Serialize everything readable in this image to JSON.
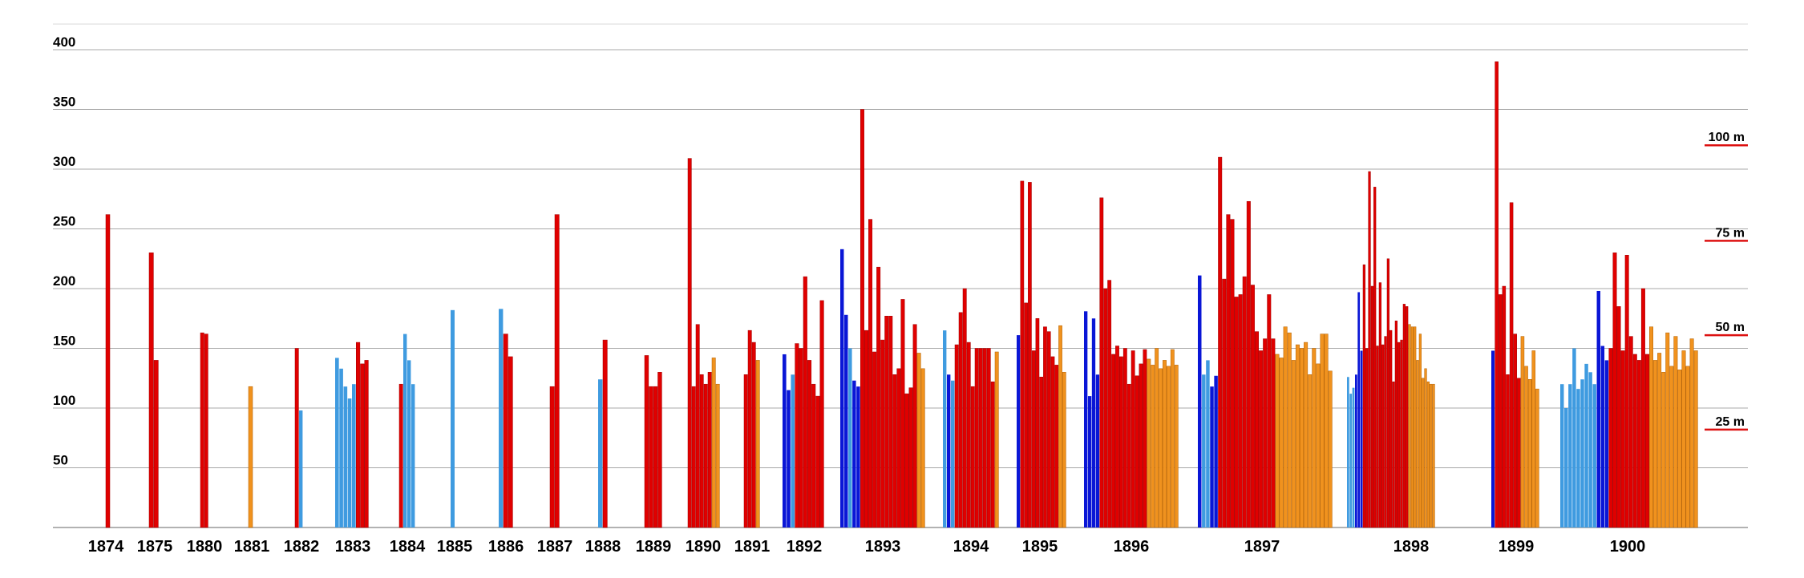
{
  "chart_data": {
    "type": "bar",
    "title": "",
    "xlabel": "",
    "ylabel": "",
    "ylim": [
      0,
      420
    ],
    "grid": true,
    "y_ticks": [
      50,
      100,
      150,
      200,
      250,
      300,
      350,
      400
    ],
    "colors": {
      "dark_blue": "#0a16d6",
      "light_blue": "#3f9be0",
      "red": "#e00000",
      "orange": "#f0921e",
      "grid": "#a8a8a8",
      "scale_bar": "#dd1111"
    },
    "right_scale": [
      {
        "label": "100 m",
        "value": 320
      },
      {
        "label": "75 m",
        "value": 240
      },
      {
        "label": "50 m",
        "value": 161
      },
      {
        "label": "25 m",
        "value": 82
      }
    ],
    "groups": [
      {
        "year": "1874",
        "bars": [
          [
            "r",
            262
          ]
        ]
      },
      {
        "year": "1875",
        "bars": [
          [
            "r",
            230
          ],
          [
            "r",
            140
          ]
        ]
      },
      {
        "year": "1880",
        "bars": [
          [
            "r",
            163
          ],
          [
            "r",
            162
          ]
        ]
      },
      {
        "year": "1881",
        "bars": [
          [
            "o",
            118
          ]
        ]
      },
      {
        "year": "1882",
        "bars": [
          [
            "r",
            150
          ],
          [
            "lb",
            98
          ]
        ]
      },
      {
        "year": "1883",
        "bars": [
          [
            "lb",
            142
          ],
          [
            "lb",
            133
          ],
          [
            "lb",
            118
          ],
          [
            "lb",
            108
          ],
          [
            "lb",
            120
          ],
          [
            "r",
            155
          ],
          [
            "r",
            137
          ],
          [
            "r",
            140
          ]
        ]
      },
      {
        "year": "1884",
        "bars": [
          [
            "r",
            120
          ],
          [
            "lb",
            162
          ],
          [
            "lb",
            140
          ],
          [
            "lb",
            120
          ]
        ]
      },
      {
        "year": "1885",
        "bars": [
          [
            "lb",
            182
          ]
        ]
      },
      {
        "year": "1886",
        "bars": [
          [
            "lb",
            183
          ],
          [
            "r",
            162
          ],
          [
            "r",
            143
          ]
        ]
      },
      {
        "year": "1887",
        "bars": [
          [
            "r",
            118
          ],
          [
            "r",
            262
          ]
        ]
      },
      {
        "year": "1888",
        "bars": [
          [
            "lb",
            124
          ],
          [
            "r",
            157
          ]
        ]
      },
      {
        "year": "1889",
        "bars": [
          [
            "r",
            144
          ],
          [
            "r",
            118
          ],
          [
            "r",
            118
          ],
          [
            "r",
            130
          ]
        ]
      },
      {
        "year": "1890",
        "bars": [
          [
            "r",
            309
          ],
          [
            "r",
            118
          ],
          [
            "r",
            170
          ],
          [
            "r",
            128
          ],
          [
            "r",
            120
          ],
          [
            "r",
            130
          ],
          [
            "o",
            142
          ],
          [
            "o",
            120
          ]
        ]
      },
      {
        "year": "1891",
        "bars": [
          [
            "r",
            128
          ],
          [
            "r",
            165
          ],
          [
            "r",
            155
          ],
          [
            "o",
            140
          ]
        ]
      },
      {
        "year": "1892",
        "bars": [
          [
            "db",
            145
          ],
          [
            "db",
            115
          ],
          [
            "lb",
            128
          ],
          [
            "r",
            154
          ],
          [
            "r",
            150
          ],
          [
            "r",
            210
          ],
          [
            "r",
            140
          ],
          [
            "r",
            120
          ],
          [
            "r",
            110
          ],
          [
            "r",
            190
          ]
        ]
      },
      {
        "year": "1893",
        "bars": [
          [
            "db",
            233
          ],
          [
            "db",
            178
          ],
          [
            "lb",
            150
          ],
          [
            "db",
            123
          ],
          [
            "db",
            118
          ],
          [
            "r",
            350
          ],
          [
            "r",
            165
          ],
          [
            "r",
            258
          ],
          [
            "r",
            147
          ],
          [
            "r",
            218
          ],
          [
            "r",
            157
          ],
          [
            "r",
            177
          ],
          [
            "r",
            177
          ],
          [
            "r",
            128
          ],
          [
            "r",
            133
          ],
          [
            "r",
            191
          ],
          [
            "r",
            112
          ],
          [
            "r",
            117
          ],
          [
            "r",
            170
          ],
          [
            "o",
            146
          ],
          [
            "o",
            133
          ]
        ]
      },
      {
        "year": "1894",
        "bars": [
          [
            "lb",
            165
          ],
          [
            "db",
            128
          ],
          [
            "lb",
            123
          ],
          [
            "r",
            153
          ],
          [
            "r",
            180
          ],
          [
            "r",
            200
          ],
          [
            "r",
            155
          ],
          [
            "r",
            118
          ],
          [
            "r",
            150
          ],
          [
            "r",
            150
          ],
          [
            "r",
            150
          ],
          [
            "r",
            150
          ],
          [
            "r",
            122
          ],
          [
            "o",
            147
          ]
        ]
      },
      {
        "year": "1895",
        "bars": [
          [
            "db",
            161
          ],
          [
            "r",
            290
          ],
          [
            "r",
            188
          ],
          [
            "r",
            289
          ],
          [
            "r",
            148
          ],
          [
            "r",
            175
          ],
          [
            "r",
            126
          ],
          [
            "r",
            168
          ],
          [
            "r",
            164
          ],
          [
            "r",
            143
          ],
          [
            "r",
            136
          ],
          [
            "o",
            169
          ],
          [
            "o",
            130
          ]
        ]
      },
      {
        "year": "1896",
        "bars": [
          [
            "db",
            181
          ],
          [
            "db",
            110
          ],
          [
            "db",
            175
          ],
          [
            "db",
            128
          ],
          [
            "r",
            276
          ],
          [
            "r",
            200
          ],
          [
            "r",
            207
          ],
          [
            "r",
            145
          ],
          [
            "r",
            152
          ],
          [
            "r",
            143
          ],
          [
            "r",
            150
          ],
          [
            "r",
            120
          ],
          [
            "r",
            148
          ],
          [
            "r",
            127
          ],
          [
            "r",
            137
          ],
          [
            "r",
            149
          ],
          [
            "o",
            141
          ],
          [
            "o",
            136
          ],
          [
            "o",
            150
          ],
          [
            "o",
            133
          ],
          [
            "o",
            140
          ],
          [
            "o",
            135
          ],
          [
            "o",
            149
          ],
          [
            "o",
            136
          ]
        ]
      },
      {
        "year": "1897",
        "bars": [
          [
            "db",
            211
          ],
          [
            "lb",
            128
          ],
          [
            "lb",
            140
          ],
          [
            "db",
            118
          ],
          [
            "db",
            127
          ],
          [
            "r",
            310
          ],
          [
            "r",
            208
          ],
          [
            "r",
            262
          ],
          [
            "r",
            258
          ],
          [
            "r",
            193
          ],
          [
            "r",
            195
          ],
          [
            "r",
            210
          ],
          [
            "r",
            273
          ],
          [
            "r",
            203
          ],
          [
            "r",
            164
          ],
          [
            "r",
            148
          ],
          [
            "r",
            158
          ],
          [
            "r",
            195
          ],
          [
            "r",
            158
          ],
          [
            "o",
            145
          ],
          [
            "o",
            142
          ],
          [
            "o",
            168
          ],
          [
            "o",
            163
          ],
          [
            "o",
            140
          ],
          [
            "o",
            153
          ],
          [
            "o",
            150
          ],
          [
            "o",
            155
          ],
          [
            "o",
            128
          ],
          [
            "o",
            150
          ],
          [
            "o",
            137
          ],
          [
            "o",
            162
          ],
          [
            "o",
            162
          ],
          [
            "o",
            131
          ]
        ]
      },
      {
        "year": "1898",
        "bars": [
          [
            "lb",
            126
          ],
          [
            "lb",
            112
          ],
          [
            "lb",
            117
          ],
          [
            "db",
            128
          ],
          [
            "db",
            197
          ],
          [
            "db",
            148
          ],
          [
            "r",
            220
          ],
          [
            "r",
            150
          ],
          [
            "r",
            298
          ],
          [
            "r",
            202
          ],
          [
            "r",
            285
          ],
          [
            "r",
            152
          ],
          [
            "r",
            205
          ],
          [
            "r",
            153
          ],
          [
            "r",
            160
          ],
          [
            "r",
            225
          ],
          [
            "r",
            165
          ],
          [
            "r",
            122
          ],
          [
            "r",
            173
          ],
          [
            "r",
            155
          ],
          [
            "r",
            157
          ],
          [
            "r",
            187
          ],
          [
            "r",
            185
          ],
          [
            "o",
            170
          ],
          [
            "o",
            168
          ],
          [
            "o",
            168
          ],
          [
            "o",
            140
          ],
          [
            "o",
            162
          ],
          [
            "o",
            125
          ],
          [
            "o",
            133
          ],
          [
            "o",
            122
          ],
          [
            "o",
            120
          ],
          [
            "o",
            120
          ]
        ]
      },
      {
        "year": "1899",
        "bars": [
          [
            "db",
            148
          ],
          [
            "r",
            390
          ],
          [
            "r",
            195
          ],
          [
            "r",
            202
          ],
          [
            "r",
            128
          ],
          [
            "r",
            272
          ],
          [
            "r",
            162
          ],
          [
            "r",
            125
          ],
          [
            "o",
            160
          ],
          [
            "o",
            135
          ],
          [
            "o",
            124
          ],
          [
            "o",
            148
          ],
          [
            "o",
            116
          ]
        ]
      },
      {
        "year": "1900",
        "bars": [
          [
            "lb",
            120
          ],
          [
            "lb",
            100
          ],
          [
            "lb",
            120
          ],
          [
            "lb",
            150
          ],
          [
            "lb",
            116
          ],
          [
            "lb",
            124
          ],
          [
            "lb",
            137
          ],
          [
            "lb",
            130
          ],
          [
            "lb",
            120
          ],
          [
            "db",
            198
          ],
          [
            "db",
            152
          ],
          [
            "db",
            140
          ],
          [
            "r",
            150
          ],
          [
            "r",
            230
          ],
          [
            "r",
            185
          ],
          [
            "r",
            148
          ],
          [
            "r",
            228
          ],
          [
            "r",
            160
          ],
          [
            "r",
            145
          ],
          [
            "r",
            140
          ],
          [
            "r",
            200
          ],
          [
            "r",
            145
          ],
          [
            "o",
            168
          ],
          [
            "o",
            140
          ],
          [
            "o",
            146
          ],
          [
            "o",
            130
          ],
          [
            "o",
            163
          ],
          [
            "o",
            135
          ],
          [
            "o",
            160
          ],
          [
            "o",
            132
          ],
          [
            "o",
            148
          ],
          [
            "o",
            135
          ],
          [
            "o",
            158
          ],
          [
            "o",
            148
          ]
        ]
      }
    ]
  }
}
